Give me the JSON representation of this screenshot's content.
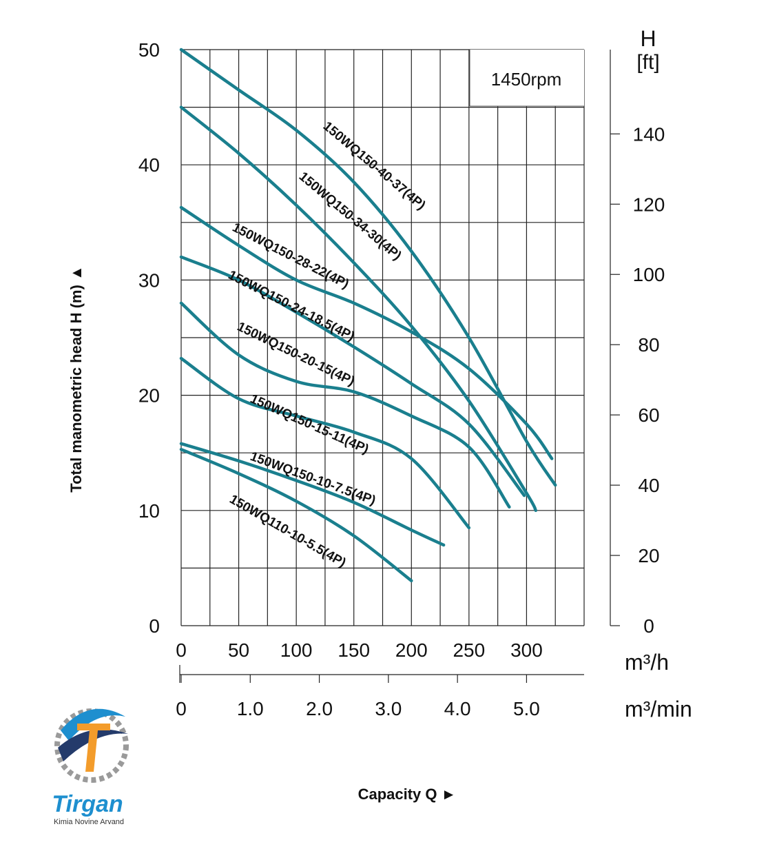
{
  "chart_data": {
    "type": "line",
    "speed_label": "1450rpm",
    "left_axis": {
      "label": "Total manometric head H (m) ▲",
      "ylim": [
        0,
        50
      ],
      "ticks": [
        "0",
        "10",
        "20",
        "30",
        "40",
        "50"
      ]
    },
    "right_axis": {
      "label_line1": "H",
      "label_line2": "[ft]",
      "ylim_ft": [
        0,
        164
      ],
      "ticks": [
        "0",
        "20",
        "40",
        "60",
        "80",
        "100",
        "120",
        "140"
      ]
    },
    "x_axis": {
      "label": "Capacity Q  ►",
      "unit_primary": "m³/h",
      "unit_secondary": "m³/min",
      "xlim": [
        0,
        350
      ],
      "ticks_primary": [
        "0",
        "50",
        "100",
        "150",
        "200",
        "250",
        "300"
      ],
      "ticks_secondary": [
        "0",
        "1.0",
        "2.0",
        "3.0",
        "4.0",
        "5.0"
      ]
    },
    "grid": true,
    "series": [
      {
        "name": "150WQ150-40-37(4P)",
        "x": [
          0,
          50,
          100,
          150,
          200,
          250,
          300,
          325
        ],
        "y": [
          50,
          46.5,
          43,
          38.5,
          32.5,
          25,
          16,
          12.2
        ]
      },
      {
        "name": "150WQ150-34-30(4P)",
        "x": [
          0,
          50,
          100,
          150,
          200,
          250,
          300,
          308
        ],
        "y": [
          45,
          41,
          36.5,
          31.5,
          26,
          19.5,
          11.5,
          10
        ]
      },
      {
        "name": "150WQ150-28-22(4P)",
        "x": [
          0,
          50,
          100,
          150,
          200,
          250,
          300,
          322
        ],
        "y": [
          36.3,
          33,
          30,
          28,
          25.5,
          22.3,
          17.5,
          14.5
        ]
      },
      {
        "name": "150WQ150-24-18.5(4P)",
        "x": [
          0,
          50,
          100,
          150,
          200,
          250,
          298
        ],
        "y": [
          32,
          30,
          27.2,
          24.2,
          21,
          17.5,
          11.3
        ]
      },
      {
        "name": "150WQ150-20-15(4P)",
        "x": [
          0,
          50,
          100,
          150,
          200,
          250,
          285
        ],
        "y": [
          28,
          23.5,
          21.2,
          20.3,
          18.2,
          15.5,
          10.3
        ]
      },
      {
        "name": "150WQ150-15-11(4P)",
        "x": [
          0,
          50,
          100,
          150,
          200,
          250
        ],
        "y": [
          23.2,
          19.7,
          18.2,
          16.8,
          14.5,
          8.5
        ]
      },
      {
        "name": "150WQ150-10-7.5(4P)",
        "x": [
          0,
          50,
          100,
          150,
          200,
          228
        ],
        "y": [
          15.8,
          14.3,
          12.6,
          10.7,
          8.3,
          7
        ]
      },
      {
        "name": "150WQ110-10-5.5(4P)",
        "x": [
          0,
          50,
          100,
          150,
          200
        ],
        "y": [
          15.3,
          13.2,
          10.8,
          7.8,
          3.9
        ]
      }
    ],
    "curve_color": "#1a7f8e"
  },
  "logo": {
    "brand": "Tirgan",
    "subtitle": "Kimia Novine Arvand"
  }
}
